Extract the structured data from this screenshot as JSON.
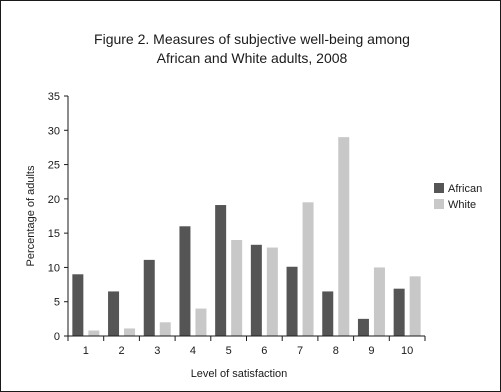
{
  "chart_data": {
    "type": "bar",
    "title_line1": "Figure 2. Measures of subjective well-being among",
    "title_line2": "African and White adults, 2008",
    "xlabel": "Level of satisfaction",
    "ylabel": "Percentage of adults",
    "categories": [
      "1",
      "2",
      "3",
      "4",
      "5",
      "6",
      "7",
      "8",
      "9",
      "10"
    ],
    "ylim": [
      0,
      35
    ],
    "yticks": [
      "0",
      "5",
      "10",
      "15",
      "20",
      "25",
      "30",
      "35"
    ],
    "grid": false,
    "legend_position": "right",
    "series": [
      {
        "name": "African",
        "color": "#555555",
        "values": [
          9.0,
          6.5,
          11.1,
          16.0,
          19.1,
          13.3,
          10.1,
          6.5,
          2.5,
          6.9
        ]
      },
      {
        "name": "White",
        "color": "#c8c8c8",
        "values": [
          0.8,
          1.1,
          2.0,
          4.0,
          14.0,
          12.9,
          19.5,
          29.0,
          10.0,
          8.7
        ]
      }
    ]
  },
  "colors": {
    "frame": "#1a1a1a",
    "axis": "#1a1a1a",
    "text": "#1a1a1a"
  }
}
